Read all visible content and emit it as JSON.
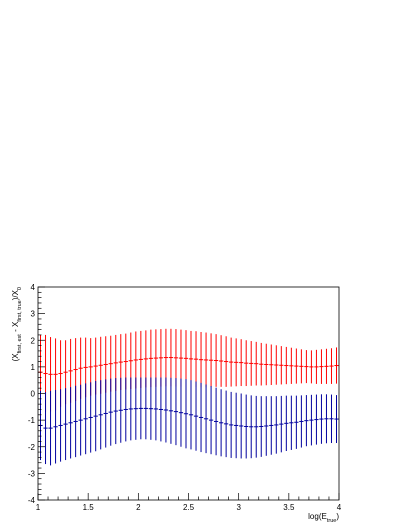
{
  "chart_data": {
    "type": "scatter",
    "title": "",
    "xlabel": {
      "base": "log(E",
      "sub": "true",
      "close": ")"
    },
    "ylabel": {
      "p1": "(X",
      "s1": "first, est",
      "p2": " - X",
      "s2": "first, true",
      "p3": ")/X",
      "s3": "0"
    },
    "xlim": [
      1,
      4
    ],
    "ylim": [
      -4,
      4
    ],
    "x_major_ticks": [
      "1",
      "1.5",
      "2",
      "2.5",
      "3",
      "3.5",
      "4"
    ],
    "y_major_ticks": [
      "-4",
      "-3",
      "-2",
      "-1",
      "0",
      "1",
      "2",
      "3",
      "4"
    ],
    "grid": false,
    "legend": "none",
    "x": [
      1.025,
      1.075,
      1.125,
      1.175,
      1.225,
      1.275,
      1.325,
      1.375,
      1.425,
      1.475,
      1.525,
      1.575,
      1.625,
      1.675,
      1.725,
      1.775,
      1.825,
      1.875,
      1.925,
      1.975,
      2.025,
      2.075,
      2.125,
      2.175,
      2.225,
      2.275,
      2.325,
      2.375,
      2.425,
      2.475,
      2.525,
      2.575,
      2.625,
      2.675,
      2.725,
      2.775,
      2.825,
      2.875,
      2.925,
      2.975,
      3.025,
      3.075,
      3.125,
      3.175,
      3.225,
      3.275,
      3.325,
      3.375,
      3.425,
      3.475,
      3.525,
      3.575,
      3.625,
      3.675,
      3.725,
      3.775,
      3.825,
      3.875,
      3.925,
      3.975
    ],
    "series": [
      {
        "color": "#ff0000",
        "y": [
          0.8,
          0.75,
          0.72,
          0.72,
          0.75,
          0.8,
          0.85,
          0.9,
          0.95,
          0.98,
          1.0,
          1.03,
          1.06,
          1.09,
          1.12,
          1.15,
          1.18,
          1.2,
          1.23,
          1.26,
          1.28,
          1.3,
          1.32,
          1.33,
          1.34,
          1.35,
          1.35,
          1.34,
          1.33,
          1.32,
          1.3,
          1.29,
          1.27,
          1.26,
          1.25,
          1.24,
          1.22,
          1.2,
          1.18,
          1.17,
          1.16,
          1.14,
          1.13,
          1.12,
          1.1,
          1.09,
          1.08,
          1.07,
          1.06,
          1.05,
          1.04,
          1.03,
          1.02,
          1.01,
          1.0,
          1.0,
          1.01,
          1.02,
          1.03,
          1.05
        ],
        "err": [
          1.4,
          1.45,
          1.4,
          1.35,
          1.25,
          1.2,
          1.2,
          1.18,
          1.15,
          1.12,
          1.08,
          1.07,
          1.07,
          1.06,
          1.05,
          1.05,
          1.05,
          1.05,
          1.06,
          1.07,
          1.07,
          1.07,
          1.08,
          1.08,
          1.08,
          1.08,
          1.08,
          1.08,
          1.07,
          1.06,
          1.05,
          1.05,
          1.04,
          1.03,
          1.01,
          0.99,
          0.97,
          0.95,
          0.92,
          0.9,
          0.88,
          0.86,
          0.84,
          0.82,
          0.8,
          0.78,
          0.76,
          0.74,
          0.72,
          0.7,
          0.68,
          0.66,
          0.64,
          0.62,
          0.62,
          0.64,
          0.65,
          0.66,
          0.67,
          0.68
        ]
      },
      {
        "color": "#00009e",
        "y": [
          -1.2,
          -1.3,
          -1.3,
          -1.25,
          -1.2,
          -1.15,
          -1.1,
          -1.05,
          -1.0,
          -0.95,
          -0.9,
          -0.85,
          -0.8,
          -0.75,
          -0.7,
          -0.66,
          -0.63,
          -0.6,
          -0.58,
          -0.57,
          -0.56,
          -0.56,
          -0.57,
          -0.58,
          -0.6,
          -0.62,
          -0.65,
          -0.68,
          -0.72,
          -0.76,
          -0.8,
          -0.85,
          -0.9,
          -0.95,
          -1.0,
          -1.05,
          -1.1,
          -1.14,
          -1.18,
          -1.2,
          -1.22,
          -1.24,
          -1.25,
          -1.25,
          -1.24,
          -1.22,
          -1.2,
          -1.18,
          -1.15,
          -1.12,
          -1.1,
          -1.08,
          -1.05,
          -1.02,
          -1.0,
          -0.98,
          -0.96,
          -0.95,
          -0.95,
          -0.96
        ],
        "err": [
          1.3,
          1.35,
          1.4,
          1.38,
          1.36,
          1.35,
          1.34,
          1.34,
          1.33,
          1.33,
          1.32,
          1.32,
          1.3,
          1.28,
          1.26,
          1.24,
          1.22,
          1.2,
          1.18,
          1.17,
          1.16,
          1.16,
          1.17,
          1.18,
          1.2,
          1.22,
          1.24,
          1.26,
          1.28,
          1.3,
          1.3,
          1.3,
          1.3,
          1.29,
          1.28,
          1.27,
          1.26,
          1.25,
          1.24,
          1.23,
          1.22,
          1.2,
          1.18,
          1.16,
          1.14,
          1.12,
          1.1,
          1.08,
          1.06,
          1.04,
          1.02,
          1.0,
          0.98,
          0.96,
          0.95,
          0.94,
          0.93,
          0.92,
          0.91,
          0.9
        ]
      }
    ]
  }
}
